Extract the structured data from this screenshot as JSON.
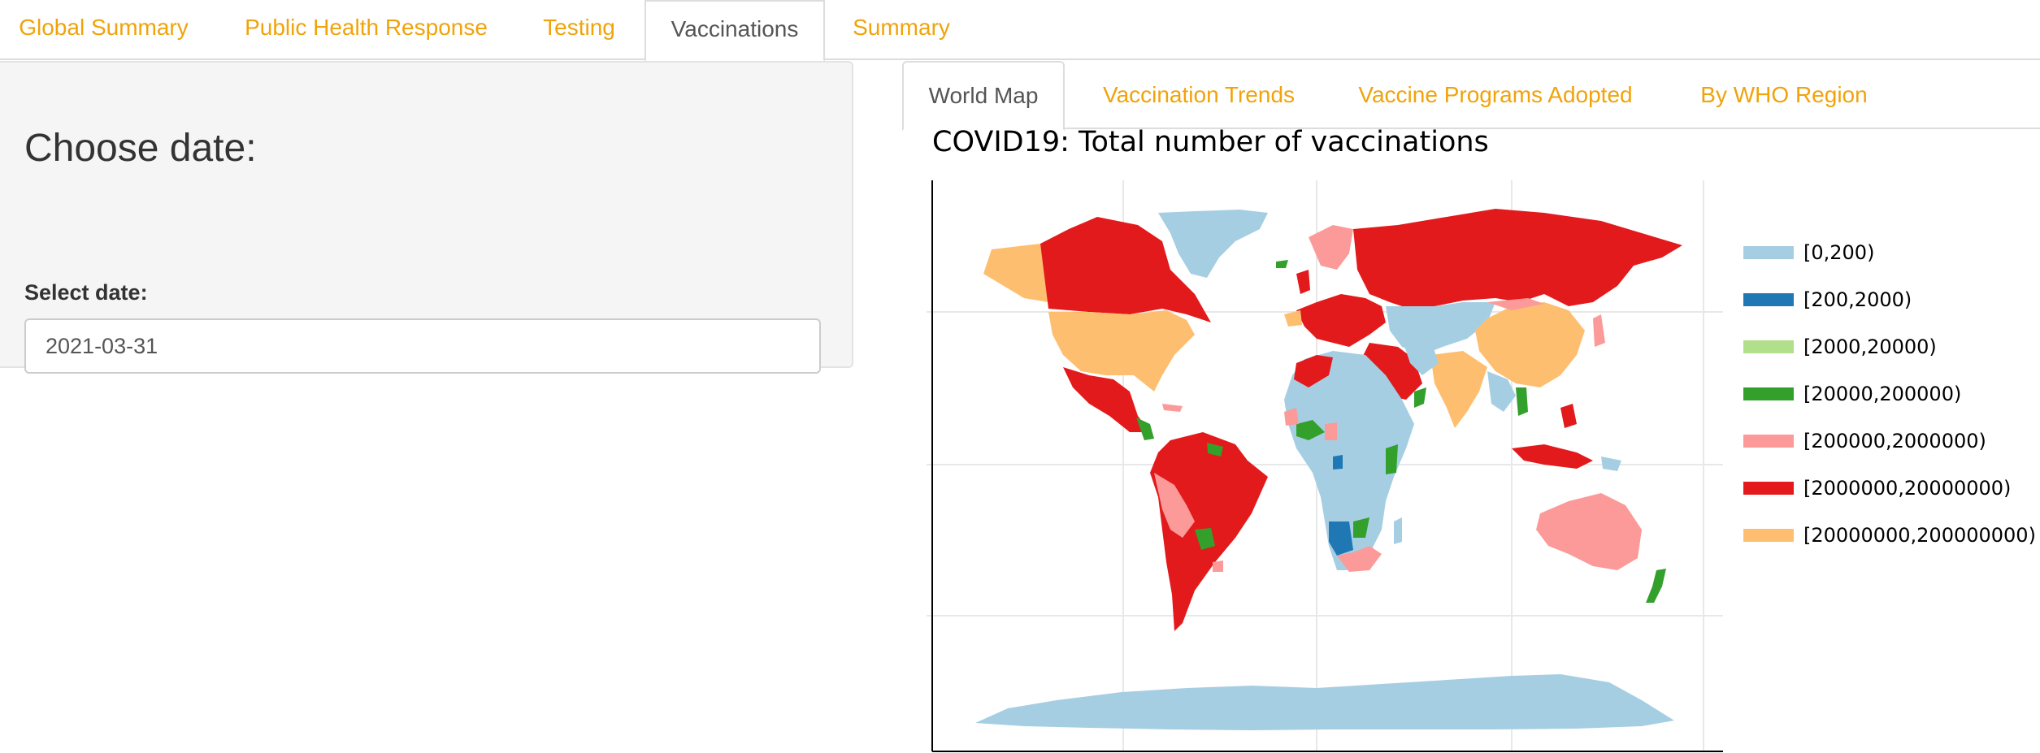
{
  "nav": {
    "tabs": [
      {
        "label": "Global Summary"
      },
      {
        "label": "Public Health Response"
      },
      {
        "label": "Testing"
      },
      {
        "label": "Vaccinations"
      },
      {
        "label": "Summary"
      }
    ],
    "active": "Vaccinations"
  },
  "sidebar": {
    "heading": "Choose date:",
    "date_label": "Select date:",
    "date_value": "2021-03-31"
  },
  "subtabs": {
    "tabs": [
      {
        "label": "World Map"
      },
      {
        "label": "Vaccination Trends"
      },
      {
        "label": "Vaccine Programs Adopted"
      },
      {
        "label": "By WHO Region"
      }
    ],
    "active": "World Map"
  },
  "map": {
    "title": "COVID19: Total number of vaccinations",
    "legend": [
      {
        "label": "[0,200)",
        "color": "#a6cee3"
      },
      {
        "label": "[200,2000)",
        "color": "#1f78b4"
      },
      {
        "label": "[2000,20000)",
        "color": "#b2df8a"
      },
      {
        "label": "[20000,200000)",
        "color": "#33a02c"
      },
      {
        "label": "[200000,2000000)",
        "color": "#fb9a99"
      },
      {
        "label": "[2000000,20000000)",
        "color": "#e31a1c"
      },
      {
        "label": "[20000000,200000000)",
        "color": "#fdbf6f"
      }
    ]
  }
}
